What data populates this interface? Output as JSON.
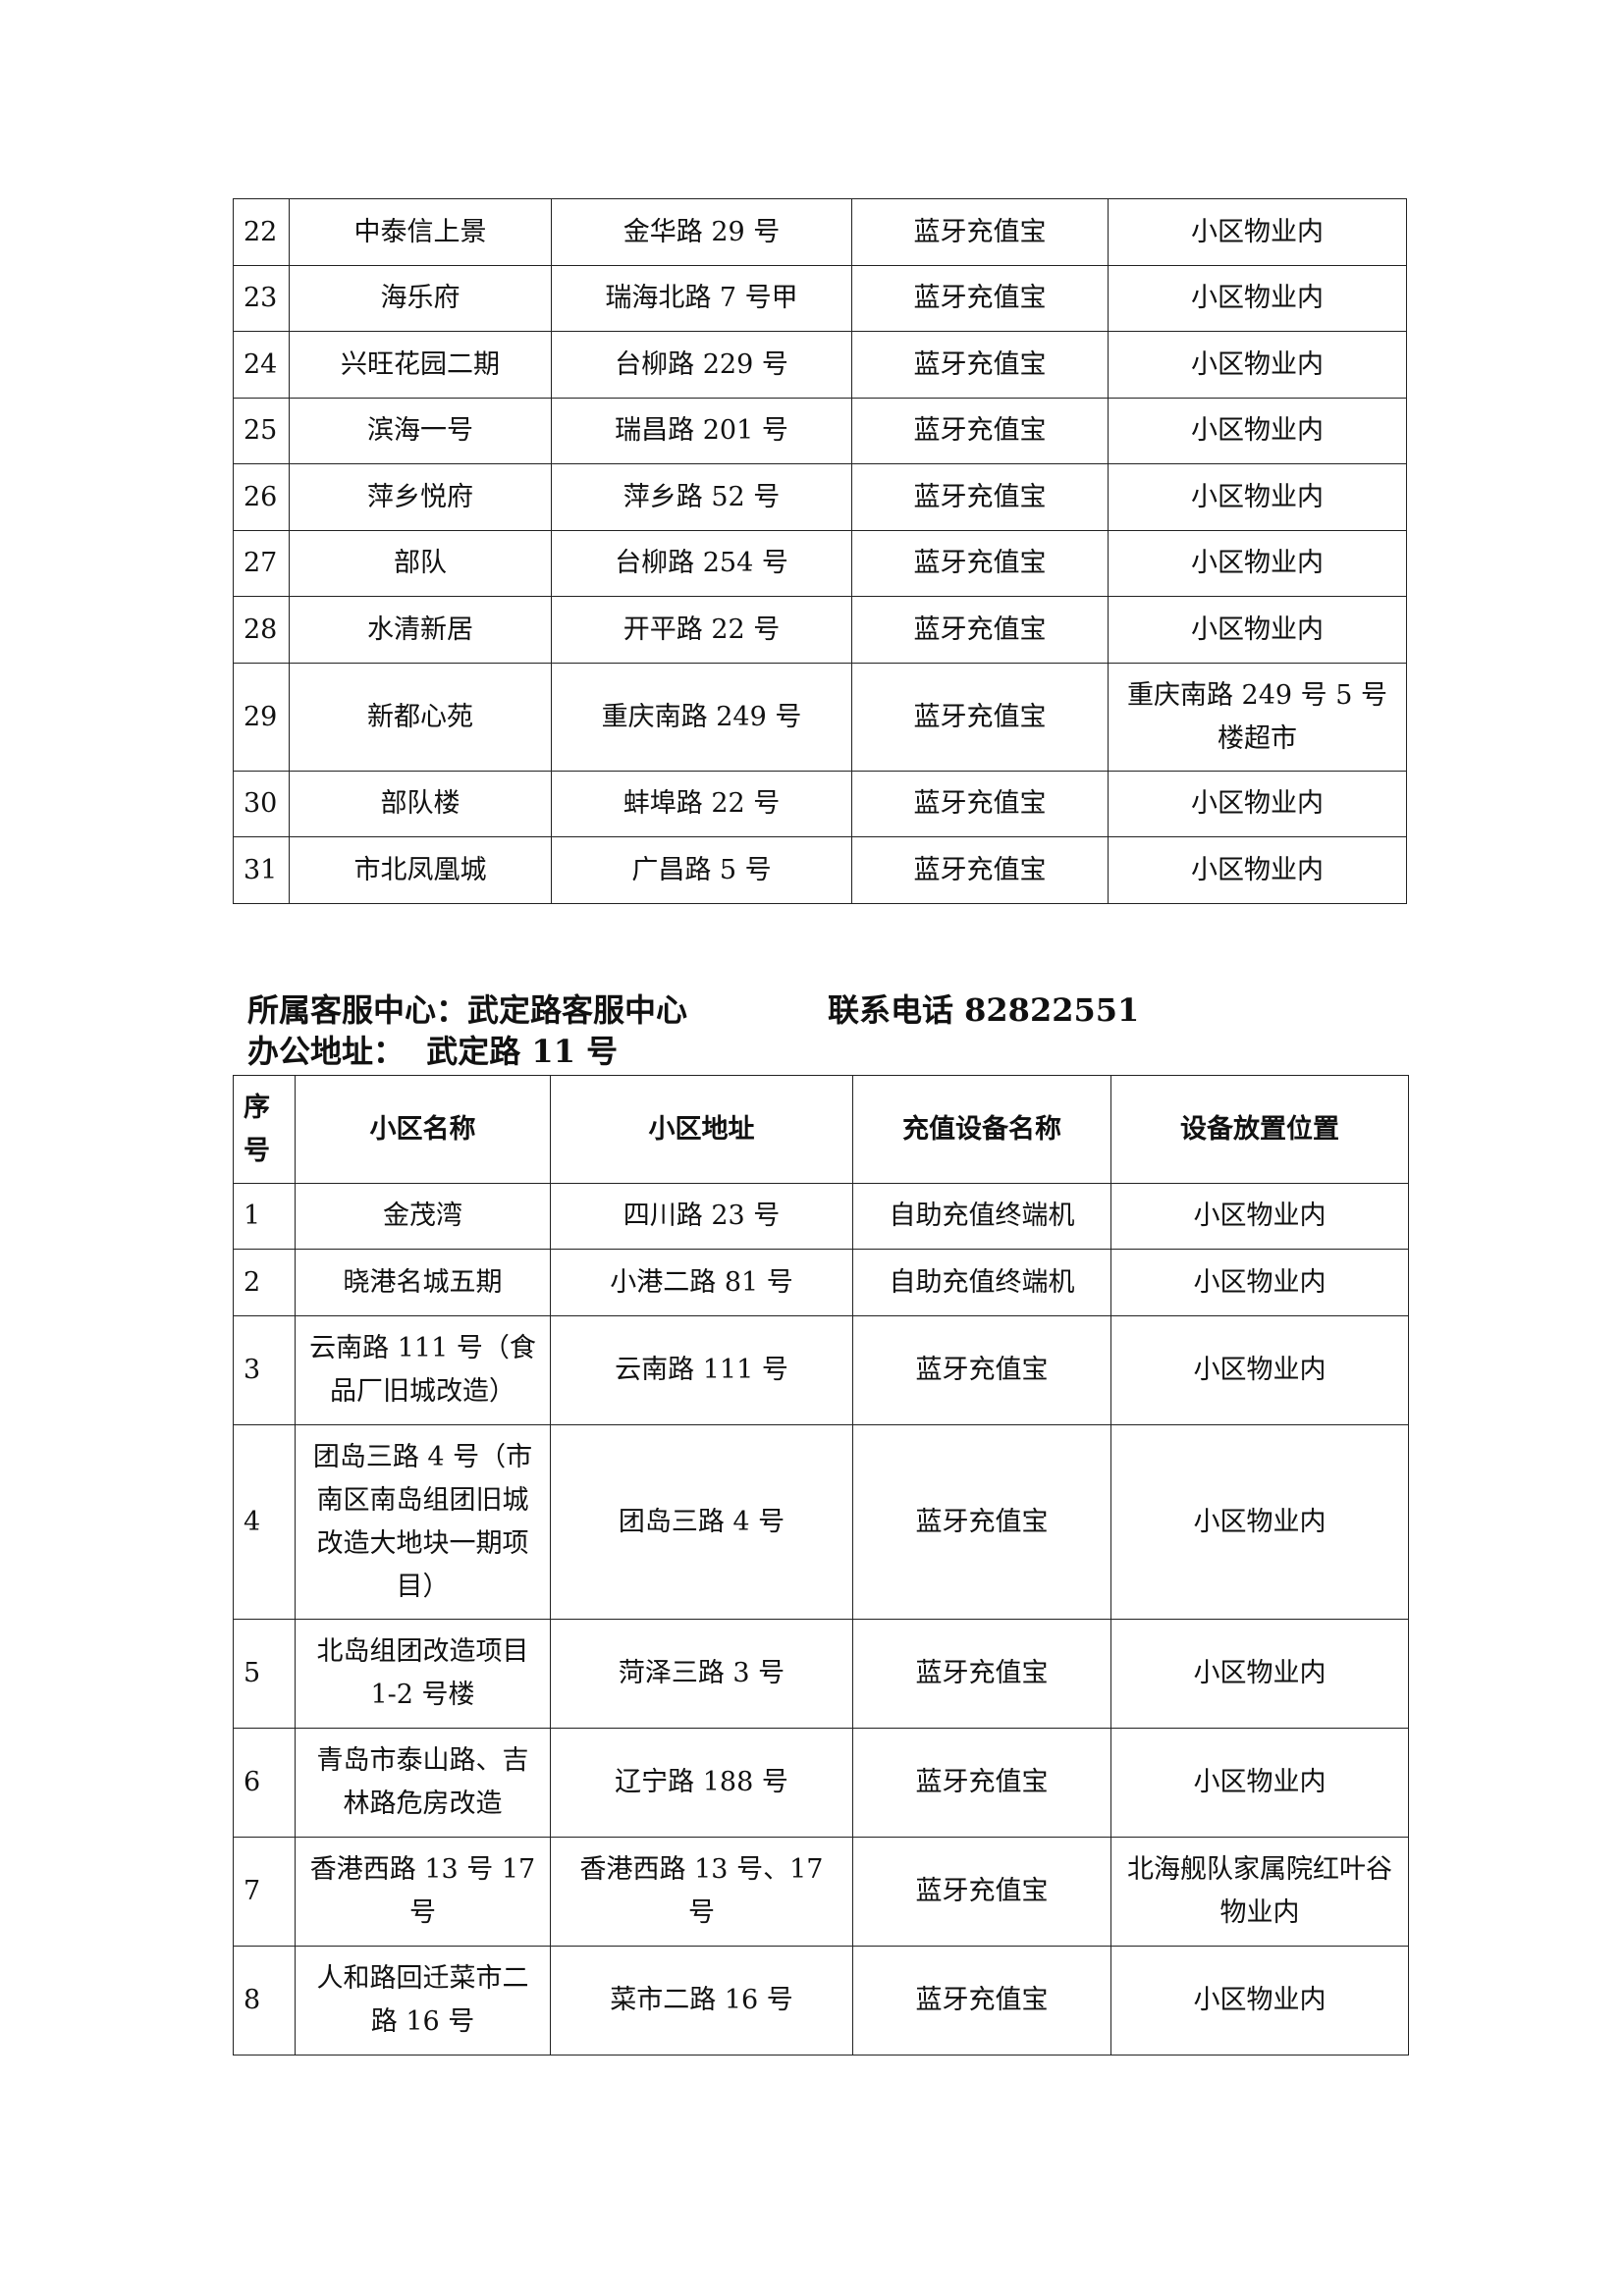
{
  "table1": {
    "rows": [
      [
        "22",
        "中泰信上景",
        "金华路 29 号",
        "蓝牙充值宝",
        "小区物业内"
      ],
      [
        "23",
        "海乐府",
        "瑞海北路 7 号甲",
        "蓝牙充值宝",
        "小区物业内"
      ],
      [
        "24",
        "兴旺花园二期",
        "台柳路 229 号",
        "蓝牙充值宝",
        "小区物业内"
      ],
      [
        "25",
        "滨海一号",
        "瑞昌路 201 号",
        "蓝牙充值宝",
        "小区物业内"
      ],
      [
        "26",
        "萍乡悦府",
        "萍乡路 52 号",
        "蓝牙充值宝",
        "小区物业内"
      ],
      [
        "27",
        "部队",
        "台柳路 254 号",
        "蓝牙充值宝",
        "小区物业内"
      ],
      [
        "28",
        "水清新居",
        "开平路 22 号",
        "蓝牙充值宝",
        "小区物业内"
      ],
      [
        "29",
        "新都心苑",
        "重庆南路 249 号",
        "蓝牙充值宝",
        "重庆南路 249 号 5 号楼超市"
      ],
      [
        "30",
        "部队楼",
        "蚌埠路 22 号",
        "蓝牙充值宝",
        "小区物业内"
      ],
      [
        "31",
        "市北凤凰城",
        "广昌路 5 号",
        "蓝牙充值宝",
        "小区物业内"
      ]
    ]
  },
  "section2": {
    "center_label": "所属客服中心：武定路客服中心",
    "phone_label": "联系电话 82822551",
    "address_label": "办公地址：  武定路 11 号"
  },
  "table2": {
    "headers": [
      "序号",
      "小区名称",
      "小区地址",
      "充值设备名称",
      "设备放置位置"
    ],
    "rows": [
      [
        "1",
        "金茂湾",
        "四川路 23 号",
        "自助充值终端机",
        "小区物业内"
      ],
      [
        "2",
        "晓港名城五期",
        "小港二路 81 号",
        "自助充值终端机",
        "小区物业内"
      ],
      [
        "3",
        "云南路 111 号（食品厂旧城改造）",
        "云南路 111 号",
        "蓝牙充值宝",
        "小区物业内"
      ],
      [
        "4",
        "团岛三路 4 号（市南区南岛组团旧城改造大地块一期项目）",
        "团岛三路 4 号",
        "蓝牙充值宝",
        "小区物业内"
      ],
      [
        "5",
        "北岛组团改造项目 1-2 号楼",
        "菏泽三路 3 号",
        "蓝牙充值宝",
        "小区物业内"
      ],
      [
        "6",
        "青岛市泰山路、吉林路危房改造",
        "辽宁路 188 号",
        "蓝牙充值宝",
        "小区物业内"
      ],
      [
        "7",
        "香港西路 13 号 17 号",
        "香港西路 13 号、17 号",
        "蓝牙充值宝",
        "北海舰队家属院红叶谷物业内"
      ],
      [
        "8",
        "人和路回迁菜市二路 16 号",
        "菜市二路 16 号",
        "蓝牙充值宝",
        "小区物业内"
      ]
    ]
  }
}
